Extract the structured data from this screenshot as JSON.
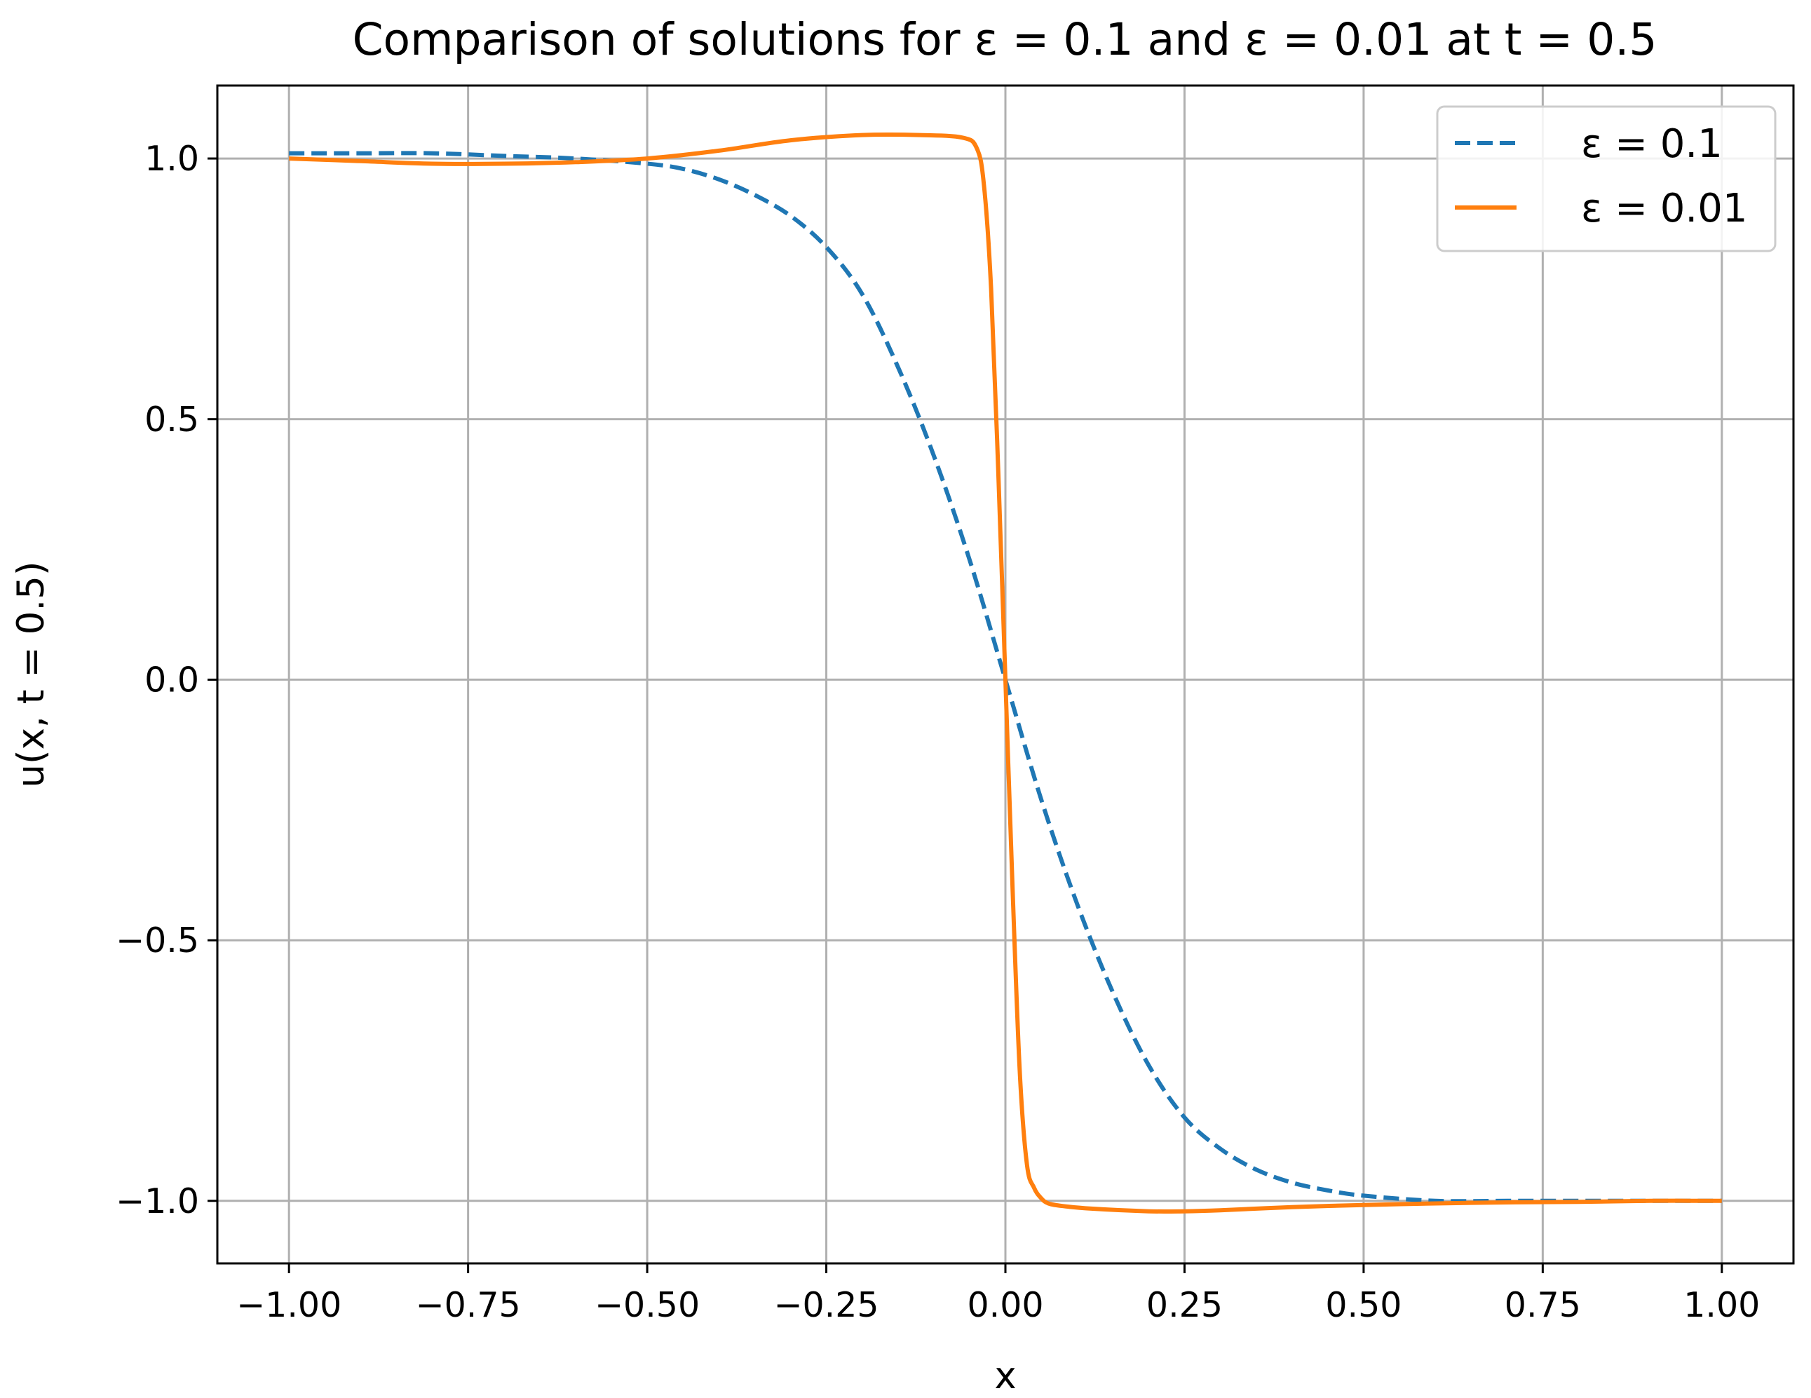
{
  "chart_data": {
    "type": "line",
    "title": "Comparison of solutions for ε = 0.1 and ε = 0.01 at t = 0.5",
    "xlabel": "x",
    "ylabel": "u(x, t = 0.5)",
    "xlim": [
      -1.1,
      1.1
    ],
    "ylim": [
      -1.12,
      1.14
    ],
    "xticks": [
      -1.0,
      -0.75,
      -0.5,
      -0.25,
      0.0,
      0.25,
      0.5,
      0.75,
      1.0
    ],
    "xtick_labels": [
      "−1.00",
      "−0.75",
      "−0.50",
      "−0.25",
      "0.00",
      "0.25",
      "0.50",
      "0.75",
      "1.00"
    ],
    "yticks": [
      -1.0,
      -0.5,
      0.0,
      0.5,
      1.0
    ],
    "ytick_labels": [
      "−1.0",
      "−0.5",
      "0.0",
      "0.5",
      "1.0"
    ],
    "grid": true,
    "legend_position": "top-right",
    "series": [
      {
        "name": "ε = 0.1",
        "style": "dashed",
        "color": "#1f77b4",
        "x": [
          -1.0,
          -0.9,
          -0.8,
          -0.7,
          -0.6,
          -0.5,
          -0.45,
          -0.4,
          -0.35,
          -0.3,
          -0.25,
          -0.2,
          -0.15,
          -0.1,
          -0.05,
          0.0,
          0.05,
          0.1,
          0.15,
          0.2,
          0.25,
          0.3,
          0.35,
          0.4,
          0.45,
          0.5,
          0.6,
          0.7,
          0.8,
          0.9,
          1.0
        ],
        "y": [
          1.01,
          1.01,
          1.01,
          1.005,
          1.0,
          0.99,
          0.98,
          0.96,
          0.93,
          0.89,
          0.83,
          0.74,
          0.6,
          0.43,
          0.23,
          0.0,
          -0.23,
          -0.43,
          -0.6,
          -0.74,
          -0.84,
          -0.9,
          -0.94,
          -0.965,
          -0.98,
          -0.99,
          -1.0,
          -1.0,
          -1.0,
          -1.0,
          -1.0
        ]
      },
      {
        "name": "ε = 0.01",
        "style": "solid",
        "color": "#ff7f0e",
        "x": [
          -1.0,
          -0.9,
          -0.8,
          -0.7,
          -0.6,
          -0.5,
          -0.4,
          -0.3,
          -0.2,
          -0.12,
          -0.06,
          -0.04,
          -0.03,
          -0.02,
          -0.01,
          0.0,
          0.01,
          0.02,
          0.03,
          0.04,
          0.05,
          0.06,
          0.08,
          0.12,
          0.2,
          0.25,
          0.3,
          0.4,
          0.5,
          0.6,
          0.7,
          0.8,
          0.9,
          1.0
        ],
        "y": [
          1.0,
          0.995,
          0.99,
          0.99,
          0.993,
          1.0,
          1.015,
          1.035,
          1.045,
          1.045,
          1.04,
          1.02,
          0.95,
          0.75,
          0.4,
          0.0,
          -0.4,
          -0.75,
          -0.93,
          -0.975,
          -0.995,
          -1.005,
          -1.01,
          -1.015,
          -1.02,
          -1.02,
          -1.018,
          -1.012,
          -1.008,
          -1.005,
          -1.003,
          -1.002,
          -1.0,
          -1.0
        ]
      }
    ]
  }
}
